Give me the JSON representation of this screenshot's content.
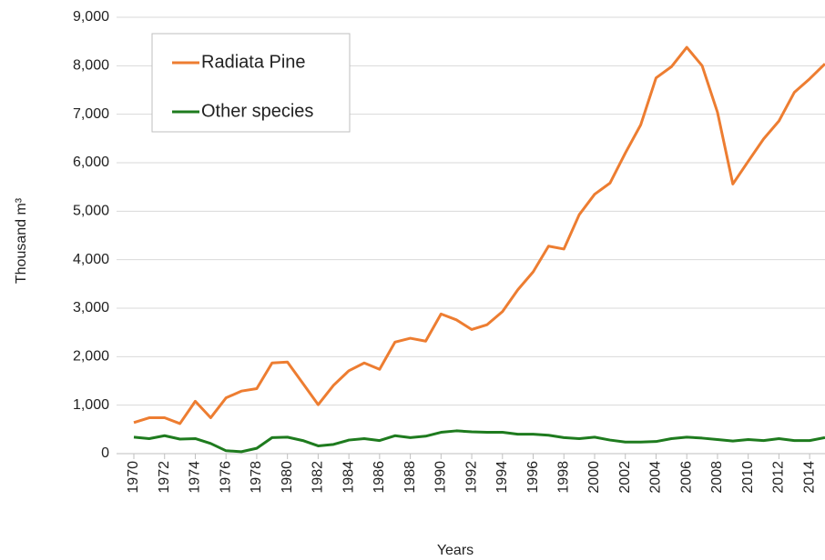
{
  "chart_data": {
    "type": "line",
    "x": [
      1970,
      1971,
      1972,
      1973,
      1974,
      1975,
      1976,
      1977,
      1978,
      1979,
      1980,
      1981,
      1982,
      1983,
      1984,
      1985,
      1986,
      1987,
      1988,
      1989,
      1990,
      1991,
      1992,
      1993,
      1994,
      1995,
      1996,
      1997,
      1998,
      1999,
      2000,
      2001,
      2002,
      2003,
      2004,
      2005,
      2006,
      2007,
      2008,
      2009,
      2010,
      2011,
      2012,
      2013,
      2014,
      2015
    ],
    "series": [
      {
        "name": "Radiata Pine",
        "color": "#ed7d31",
        "values": [
          640,
          740,
          740,
          620,
          1080,
          740,
          1150,
          1290,
          1340,
          1870,
          1890,
          1450,
          1010,
          1410,
          1710,
          1870,
          1740,
          2300,
          2380,
          2320,
          2880,
          2760,
          2560,
          2660,
          2930,
          3380,
          3750,
          4280,
          4220,
          4930,
          5350,
          5580,
          6200,
          6780,
          7750,
          7980,
          8380,
          8000,
          7040,
          5560,
          6030,
          6490,
          6860,
          7450,
          7730,
          8040
        ]
      },
      {
        "name": "Other species",
        "color": "#1e7b1e",
        "values": [
          340,
          310,
          370,
          300,
          310,
          210,
          60,
          40,
          110,
          330,
          340,
          270,
          160,
          190,
          280,
          310,
          270,
          370,
          330,
          360,
          440,
          470,
          450,
          440,
          440,
          400,
          400,
          380,
          330,
          310,
          340,
          280,
          240,
          240,
          250,
          310,
          340,
          320,
          290,
          260,
          290,
          270,
          310,
          270,
          270,
          330
        ]
      }
    ],
    "x_label": "Years",
    "y_label": "Thousand m³",
    "xlim": [
      1970,
      2015
    ],
    "xticks": [
      1970,
      1972,
      1974,
      1976,
      1978,
      1980,
      1982,
      1984,
      1986,
      1988,
      1990,
      1992,
      1994,
      1996,
      1998,
      2000,
      2002,
      2004,
      2006,
      2008,
      2010,
      2012,
      2014
    ],
    "ylim": [
      0,
      9000
    ],
    "yticks": [
      0,
      {
        "value": 1000,
        "label": "1,000"
      },
      {
        "value": 2000,
        "label": "2,000"
      },
      {
        "value": 3000,
        "label": "3,000"
      },
      {
        "value": 4000,
        "label": "4,000"
      },
      {
        "value": 5000,
        "label": "5,000"
      },
      {
        "value": 6000,
        "label": "6,000"
      },
      {
        "value": 7000,
        "label": "7,000"
      },
      {
        "value": 8000,
        "label": "8,000"
      },
      {
        "value": 9000,
        "label": "9,000"
      }
    ],
    "grid": true,
    "legend": "upper left"
  }
}
